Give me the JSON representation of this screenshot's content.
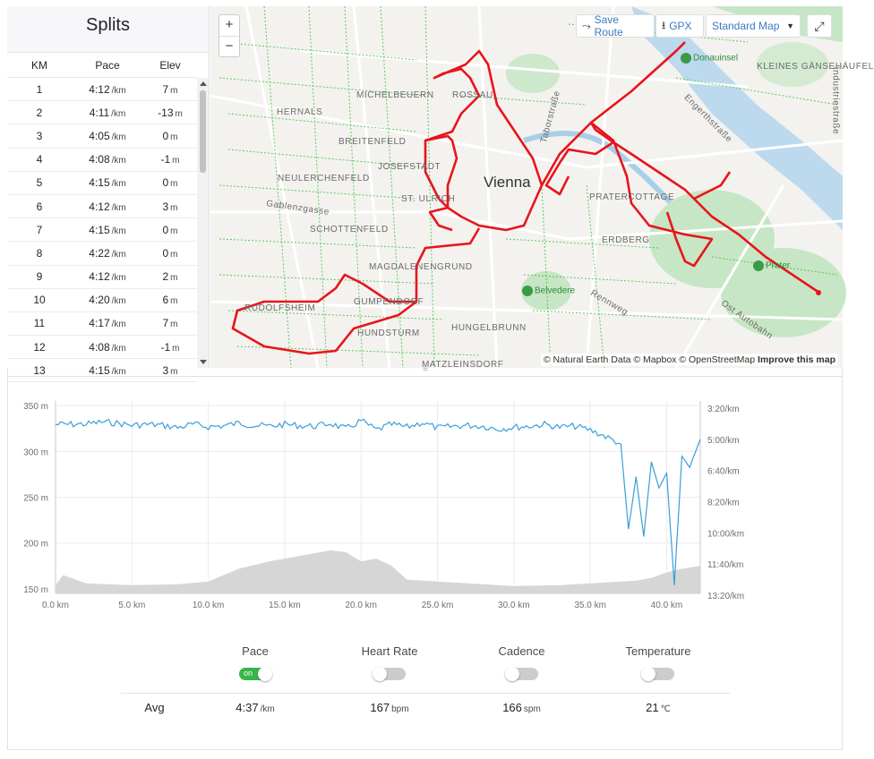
{
  "splits": {
    "title": "Splits",
    "headers": [
      "KM",
      "Pace",
      "Elev"
    ],
    "rows": [
      {
        "km": "1",
        "pace": "4:12",
        "pace_unit": "/km",
        "elev": "7",
        "elev_unit": "m"
      },
      {
        "km": "2",
        "pace": "4:11",
        "pace_unit": "/km",
        "elev": "-13",
        "elev_unit": "m"
      },
      {
        "km": "3",
        "pace": "4:05",
        "pace_unit": "/km",
        "elev": "0",
        "elev_unit": "m"
      },
      {
        "km": "4",
        "pace": "4:08",
        "pace_unit": "/km",
        "elev": "-1",
        "elev_unit": "m"
      },
      {
        "km": "5",
        "pace": "4:15",
        "pace_unit": "/km",
        "elev": "0",
        "elev_unit": "m"
      },
      {
        "km": "6",
        "pace": "4:12",
        "pace_unit": "/km",
        "elev": "3",
        "elev_unit": "m"
      },
      {
        "km": "7",
        "pace": "4:15",
        "pace_unit": "/km",
        "elev": "0",
        "elev_unit": "m"
      },
      {
        "km": "8",
        "pace": "4:22",
        "pace_unit": "/km",
        "elev": "0",
        "elev_unit": "m"
      },
      {
        "km": "9",
        "pace": "4:12",
        "pace_unit": "/km",
        "elev": "2",
        "elev_unit": "m"
      },
      {
        "km": "10",
        "pace": "4:20",
        "pace_unit": "/km",
        "elev": "6",
        "elev_unit": "m"
      },
      {
        "km": "11",
        "pace": "4:17",
        "pace_unit": "/km",
        "elev": "7",
        "elev_unit": "m"
      },
      {
        "km": "12",
        "pace": "4:08",
        "pace_unit": "/km",
        "elev": "-1",
        "elev_unit": "m"
      },
      {
        "km": "13",
        "pace": "4:15",
        "pace_unit": "/km",
        "elev": "3",
        "elev_unit": "m"
      }
    ]
  },
  "map": {
    "zoom_in": "+",
    "zoom_out": "−",
    "save_route": "Save Route",
    "gpx": "GPX",
    "map_style": "Standard Map",
    "city_label": "Vienna",
    "districts": [
      "MICHELBEUERN",
      "ROSSAU",
      "HERNALS",
      "BREITENFELD",
      "JOSEFSTADT",
      "NEULERCHENFELD",
      "ST. ULRICH",
      "SCHOTTENFELD",
      "MAGDALENENGRUND",
      "RUDOLFSHEIM",
      "GUMPENDORF",
      "HUNDSTURM",
      "HUNGELBRUNN",
      "MATZLEINSDORF",
      "PRATERCOTTAGE",
      "ERDBERG",
      "KLEINES GÄNSEHÄUFEL"
    ],
    "streets": [
      "Gablenzgasse",
      "Taborstraße",
      "Engerthstraße",
      "Rennweg",
      "Ost Autobahn",
      "Industriestraße"
    ],
    "pois": [
      "Donauinsel",
      "Prater",
      "Belvedere"
    ],
    "attribution_prefix": "© Natural Earth Data © Mapbox © OpenStreetMap",
    "attribution_link": "Improve this map",
    "route_color": "#e8141b",
    "path_color": "#3cbf3c"
  },
  "chart_data": {
    "type": "line",
    "x_ticks": [
      "0.0 km",
      "5.0 km",
      "10.0 km",
      "15.0 km",
      "20.0 km",
      "25.0 km",
      "30.0 km",
      "35.0 km",
      "40.0 km"
    ],
    "y_left_ticks": [
      "350 m",
      "300 m",
      "250 m",
      "200 m",
      "150 m"
    ],
    "y_right_ticks": [
      "3:20/km",
      "5:00/km",
      "6:40/km",
      "8:20/km",
      "10:00/km",
      "11:40/km",
      "13:20/km"
    ],
    "xlim": [
      0,
      42.2
    ],
    "ylim_left": [
      145,
      355
    ],
    "pace_color": "#3a9ed9",
    "elevation_color": "#d6d6d6",
    "series": [
      {
        "name": "Pace",
        "x": [
          0,
          1,
          2,
          3,
          4,
          5,
          6,
          7,
          8,
          9,
          10,
          11,
          12,
          13,
          14,
          15,
          16,
          17,
          18,
          19,
          20,
          21,
          22,
          23,
          24,
          25,
          26,
          27,
          28,
          29,
          30,
          31,
          32,
          33,
          34,
          35,
          36,
          37,
          37.5,
          38,
          38.5,
          39,
          39.5,
          40,
          40.5,
          41,
          41.5,
          42.2
        ],
        "values": [
          4.2,
          4.2,
          4.18,
          4.08,
          4.13,
          4.25,
          4.2,
          4.25,
          4.37,
          4.2,
          4.33,
          4.28,
          4.13,
          4.25,
          4.3,
          4.2,
          4.27,
          4.3,
          4.15,
          4.45,
          4.0,
          4.5,
          4.2,
          4.35,
          4.1,
          4.4,
          4.3,
          4.25,
          4.3,
          4.45,
          4.35,
          4.3,
          4.2,
          4.35,
          4.3,
          4.5,
          4.85,
          5.25,
          9.8,
          7.0,
          10.2,
          6.2,
          7.6,
          6.8,
          12.8,
          5.9,
          6.5,
          5.0
        ]
      },
      {
        "name": "Elevation",
        "x": [
          0,
          0.5,
          2,
          5,
          8,
          10,
          12,
          14,
          16,
          18,
          19,
          20,
          21,
          22,
          23,
          25,
          28,
          30,
          33,
          35,
          36,
          38,
          39,
          40,
          41,
          42.2
        ],
        "values": [
          154,
          165,
          156,
          154,
          155,
          158,
          172,
          180,
          186,
          192,
          190,
          180,
          183,
          175,
          160,
          158,
          155,
          153,
          154,
          156,
          157,
          159,
          162,
          168,
          172,
          175
        ]
      }
    ]
  },
  "stats": {
    "columns": [
      "Pace",
      "Heart Rate",
      "Cadence",
      "Temperature"
    ],
    "toggles": [
      true,
      false,
      false,
      false
    ],
    "toggle_on_label": "on",
    "avg_label": "Avg",
    "avg_values": [
      {
        "value": "4:37",
        "unit": "/km"
      },
      {
        "value": "167",
        "unit": "bpm"
      },
      {
        "value": "166",
        "unit": "spm"
      },
      {
        "value": "21",
        "unit": "℃"
      }
    ]
  }
}
